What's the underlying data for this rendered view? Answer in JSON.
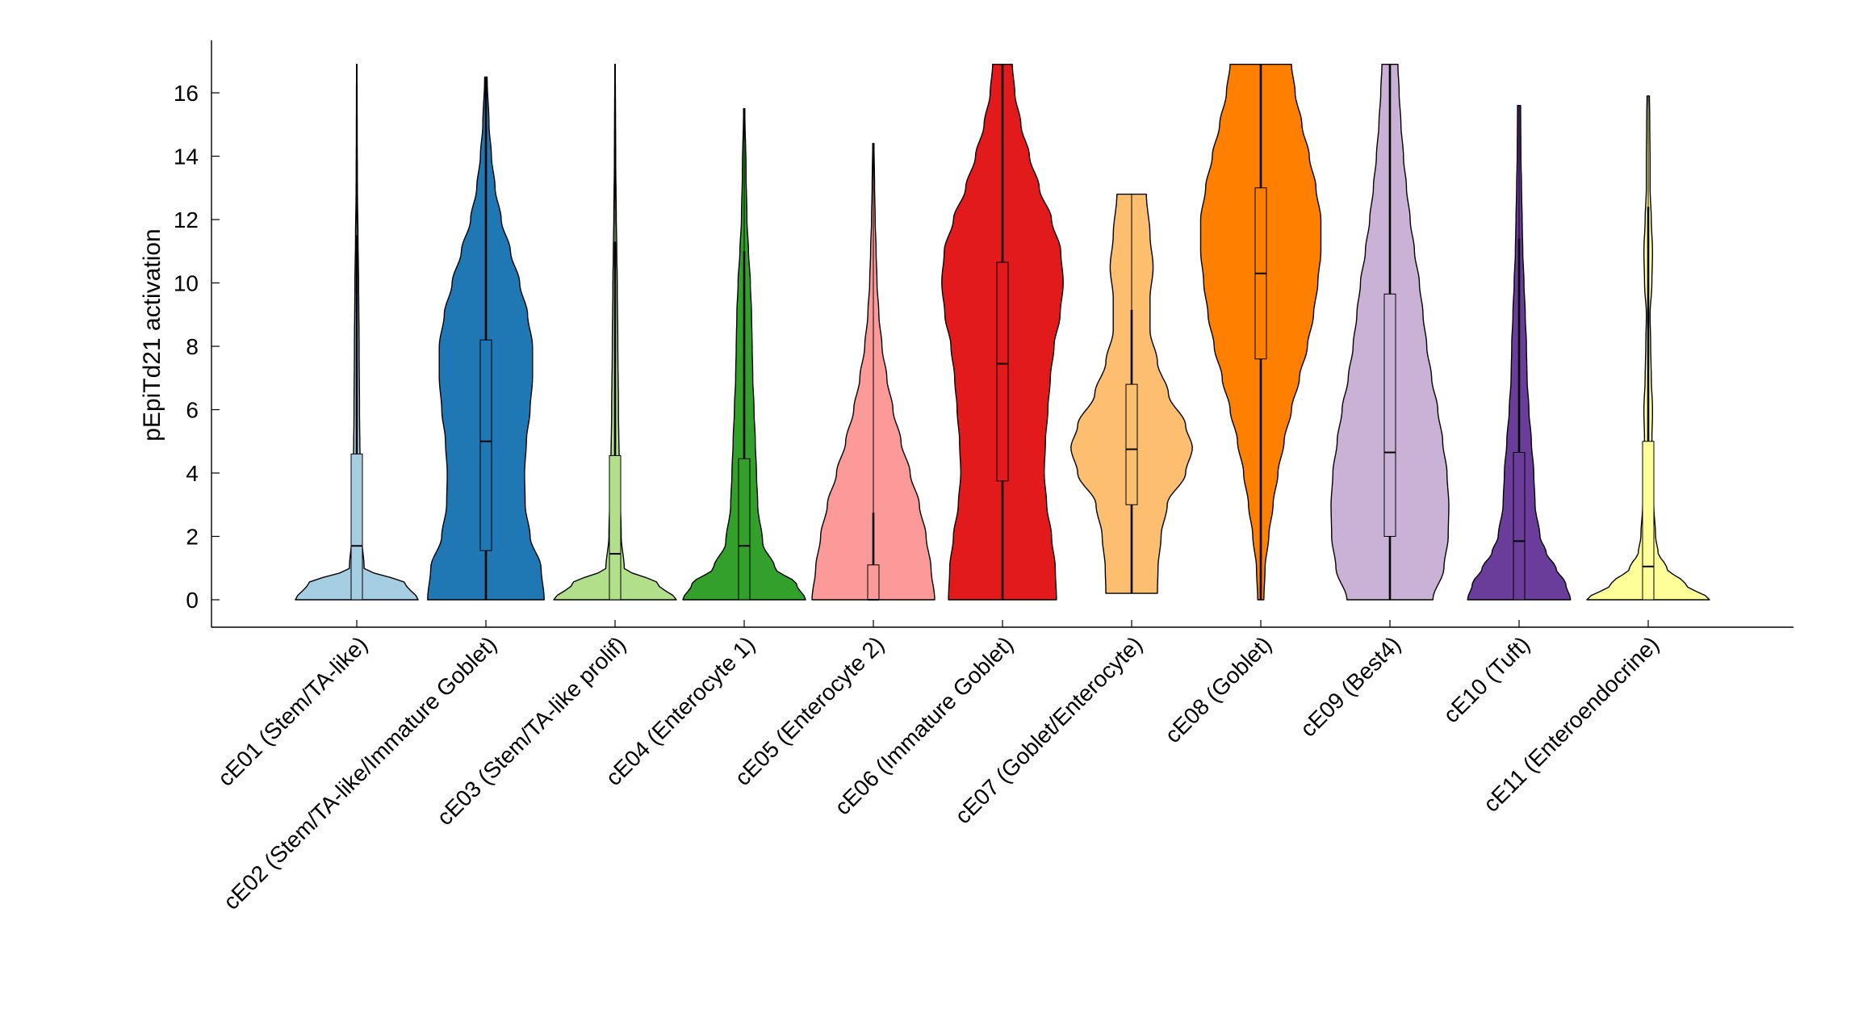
{
  "chart_data": {
    "type": "violin",
    "ylabel": "pEpiTd21 activation",
    "xlabel": "",
    "ylim": [
      -0.8,
      17.5
    ],
    "yticks": [
      0,
      2,
      4,
      6,
      8,
      10,
      12,
      14,
      16
    ],
    "grid": false,
    "legend": "none",
    "categories": [
      {
        "label": "cE01 (Stem/TA-like)",
        "color": "#a6cee3",
        "profile": [
          [
            0,
            1.0
          ],
          [
            0.5,
            0.8
          ],
          [
            1.0,
            0.12
          ],
          [
            2,
            0.08
          ],
          [
            4,
            0.055
          ],
          [
            6,
            0.045
          ],
          [
            8,
            0.038
          ],
          [
            10,
            0.03
          ],
          [
            11.5,
            0.02
          ],
          [
            13,
            0.01
          ],
          [
            15,
            0.006
          ],
          [
            16.9,
            0.004
          ]
        ],
        "box": {
          "min": 0,
          "q1": 0,
          "median": 1.7,
          "q3": 4.6,
          "max": 16.9,
          "whisker_low": 0,
          "whisker_high": 11.5
        }
      },
      {
        "label": "cE02 (Stem/TA-like/Immature Goblet)",
        "color": "#1f78b4",
        "profile": [
          [
            0,
            0.95
          ],
          [
            1,
            0.9
          ],
          [
            2,
            0.72
          ],
          [
            3,
            0.64
          ],
          [
            4,
            0.63
          ],
          [
            5,
            0.66
          ],
          [
            6,
            0.72
          ],
          [
            7,
            0.76
          ],
          [
            8,
            0.76
          ],
          [
            9,
            0.68
          ],
          [
            10,
            0.55
          ],
          [
            11,
            0.4
          ],
          [
            12,
            0.25
          ],
          [
            13,
            0.15
          ],
          [
            14,
            0.09
          ],
          [
            15,
            0.05
          ],
          [
            16.5,
            0.02
          ]
        ],
        "box": {
          "min": 0,
          "q1": 1.55,
          "median": 5.0,
          "q3": 8.2,
          "max": 16.5,
          "whisker_low": 0,
          "whisker_high": 16.5
        }
      },
      {
        "label": "cE03 (Stem/TA-like prolif)",
        "color": "#b2df8a",
        "profile": [
          [
            0,
            1.0
          ],
          [
            0.5,
            0.7
          ],
          [
            1.0,
            0.15
          ],
          [
            2,
            0.1
          ],
          [
            4,
            0.07
          ],
          [
            6,
            0.055
          ],
          [
            8,
            0.045
          ],
          [
            10,
            0.035
          ],
          [
            11,
            0.028
          ],
          [
            12,
            0.02
          ],
          [
            14,
            0.01
          ],
          [
            16.9,
            0.004
          ]
        ],
        "box": {
          "min": 0,
          "q1": 0,
          "median": 1.45,
          "q3": 4.55,
          "max": 16.9,
          "whisker_low": 0,
          "whisker_high": 11.3
        }
      },
      {
        "label": "cE04 (Enterocyte 1)",
        "color": "#33a02c",
        "profile": [
          [
            0,
            1.0
          ],
          [
            0.5,
            0.85
          ],
          [
            1,
            0.5
          ],
          [
            1.8,
            0.3
          ],
          [
            3,
            0.22
          ],
          [
            4,
            0.2
          ],
          [
            5,
            0.18
          ],
          [
            6,
            0.16
          ],
          [
            7,
            0.14
          ],
          [
            8,
            0.13
          ],
          [
            9,
            0.12
          ],
          [
            10,
            0.1
          ],
          [
            11,
            0.07
          ],
          [
            12,
            0.045
          ],
          [
            13.5,
            0.03
          ],
          [
            15.5,
            0.01
          ]
        ],
        "box": {
          "min": 0,
          "q1": 0,
          "median": 1.7,
          "q3": 4.45,
          "max": 15.5,
          "whisker_low": 0,
          "whisker_high": 11.0
        }
      },
      {
        "label": "cE05 (Enterocyte 2)",
        "color": "#fb9a99",
        "profile": [
          [
            0,
            1.0
          ],
          [
            1,
            0.94
          ],
          [
            2,
            0.86
          ],
          [
            3,
            0.75
          ],
          [
            4,
            0.6
          ],
          [
            5,
            0.45
          ],
          [
            6,
            0.32
          ],
          [
            7,
            0.22
          ],
          [
            8,
            0.14
          ],
          [
            9,
            0.09
          ],
          [
            10,
            0.06
          ],
          [
            11,
            0.045
          ],
          [
            12,
            0.03
          ],
          [
            13,
            0.02
          ],
          [
            14.4,
            0.01
          ]
        ],
        "box": {
          "min": 0,
          "q1": 0,
          "median": 0,
          "q3": 1.1,
          "max": 14.4,
          "whisker_low": 0,
          "whisker_high": 2.75
        }
      },
      {
        "label": "cE06 (Immature Goblet)",
        "color": "#e31a1c",
        "profile": [
          [
            0,
            0.88
          ],
          [
            1,
            0.86
          ],
          [
            2,
            0.8
          ],
          [
            3,
            0.72
          ],
          [
            4,
            0.68
          ],
          [
            5,
            0.7
          ],
          [
            6,
            0.74
          ],
          [
            7,
            0.78
          ],
          [
            8,
            0.84
          ],
          [
            9,
            0.94
          ],
          [
            10,
            0.99
          ],
          [
            11,
            0.95
          ],
          [
            12,
            0.8
          ],
          [
            13,
            0.6
          ],
          [
            14,
            0.44
          ],
          [
            15,
            0.3
          ],
          [
            16,
            0.2
          ],
          [
            16.9,
            0.16
          ]
        ],
        "box": {
          "min": 0,
          "q1": 3.75,
          "median": 7.45,
          "q3": 10.65,
          "max": 16.9,
          "whisker_low": 0,
          "whisker_high": 16.9
        }
      },
      {
        "label": "cE07 (Goblet/Enterocyte)",
        "color": "#fdbf6f",
        "profile": [
          [
            0.2,
            0.42
          ],
          [
            1,
            0.43
          ],
          [
            2,
            0.48
          ],
          [
            3,
            0.58
          ],
          [
            4,
            0.88
          ],
          [
            4.8,
            0.99
          ],
          [
            5.5,
            0.88
          ],
          [
            6.5,
            0.6
          ],
          [
            7.5,
            0.42
          ],
          [
            8.5,
            0.3
          ],
          [
            9.5,
            0.3
          ],
          [
            10.5,
            0.35
          ],
          [
            11.5,
            0.3
          ],
          [
            12.8,
            0.24
          ]
        ],
        "box": {
          "min": 0.2,
          "q1": 3.0,
          "median": 4.75,
          "q3": 6.8,
          "max": 12.8,
          "whisker_low": 0.2,
          "whisker_high": 9.15
        }
      },
      {
        "label": "cE08 (Goblet)",
        "color": "#ff7f00",
        "profile": [
          [
            0,
            0.05
          ],
          [
            1,
            0.07
          ],
          [
            2,
            0.13
          ],
          [
            3,
            0.2
          ],
          [
            4,
            0.28
          ],
          [
            5,
            0.38
          ],
          [
            6,
            0.5
          ],
          [
            7,
            0.63
          ],
          [
            8,
            0.76
          ],
          [
            9,
            0.86
          ],
          [
            10,
            0.93
          ],
          [
            11,
            0.98
          ],
          [
            12,
            0.98
          ],
          [
            13,
            0.9
          ],
          [
            14,
            0.79
          ],
          [
            15,
            0.67
          ],
          [
            16,
            0.56
          ],
          [
            16.9,
            0.5
          ]
        ],
        "box": {
          "min": 0,
          "q1": 7.6,
          "median": 10.3,
          "q3": 13.0,
          "max": 16.9,
          "whisker_low": 0,
          "whisker_high": 16.9
        }
      },
      {
        "label": "cE09 (Best4)",
        "color": "#cab2d6",
        "profile": [
          [
            0,
            0.7
          ],
          [
            1,
            0.88
          ],
          [
            2,
            0.95
          ],
          [
            3,
            0.96
          ],
          [
            4,
            0.93
          ],
          [
            5,
            0.86
          ],
          [
            6,
            0.78
          ],
          [
            7,
            0.68
          ],
          [
            8,
            0.6
          ],
          [
            9,
            0.54
          ],
          [
            10,
            0.48
          ],
          [
            11,
            0.4
          ],
          [
            12,
            0.33
          ],
          [
            13,
            0.27
          ],
          [
            14,
            0.22
          ],
          [
            15,
            0.18
          ],
          [
            16,
            0.15
          ],
          [
            16.9,
            0.13
          ]
        ],
        "box": {
          "min": 0,
          "q1": 2.0,
          "median": 4.65,
          "q3": 9.65,
          "max": 16.9,
          "whisker_low": 0,
          "whisker_high": 16.9
        }
      },
      {
        "label": "cE10 (Tuft)",
        "color": "#6a3d9a",
        "profile": [
          [
            0,
            0.84
          ],
          [
            0.5,
            0.76
          ],
          [
            1,
            0.6
          ],
          [
            1.5,
            0.44
          ],
          [
            2,
            0.34
          ],
          [
            3,
            0.26
          ],
          [
            4,
            0.24
          ],
          [
            5,
            0.2
          ],
          [
            6,
            0.16
          ],
          [
            7,
            0.13
          ],
          [
            8,
            0.12
          ],
          [
            9,
            0.1
          ],
          [
            10,
            0.08
          ],
          [
            11,
            0.06
          ],
          [
            12,
            0.05
          ],
          [
            13,
            0.04
          ],
          [
            14,
            0.03
          ],
          [
            15.6,
            0.025
          ]
        ],
        "box": {
          "min": 0,
          "q1": 0,
          "median": 1.85,
          "q3": 4.65,
          "max": 15.6,
          "whisker_low": 0,
          "whisker_high": 11.4
        }
      },
      {
        "label": "cE11 (Enteroendocrine)",
        "color": "#ffff99",
        "profile": [
          [
            0,
            1.0
          ],
          [
            0.5,
            0.6
          ],
          [
            1,
            0.3
          ],
          [
            1.5,
            0.16
          ],
          [
            2,
            0.12
          ],
          [
            3,
            0.09
          ],
          [
            4,
            0.07
          ],
          [
            5,
            0.06
          ],
          [
            6,
            0.07
          ],
          [
            7,
            0.05
          ],
          [
            8,
            0.04
          ],
          [
            9,
            0.03
          ],
          [
            10,
            0.06
          ],
          [
            11,
            0.07
          ],
          [
            12,
            0.05
          ],
          [
            13,
            0.03
          ],
          [
            14,
            0.03
          ],
          [
            15,
            0.025
          ],
          [
            15.9,
            0.02
          ]
        ],
        "box": {
          "min": 0,
          "q1": 0,
          "median": 1.05,
          "q3": 5.0,
          "max": 15.9,
          "whisker_low": 0,
          "whisker_high": 12.4
        }
      }
    ]
  }
}
